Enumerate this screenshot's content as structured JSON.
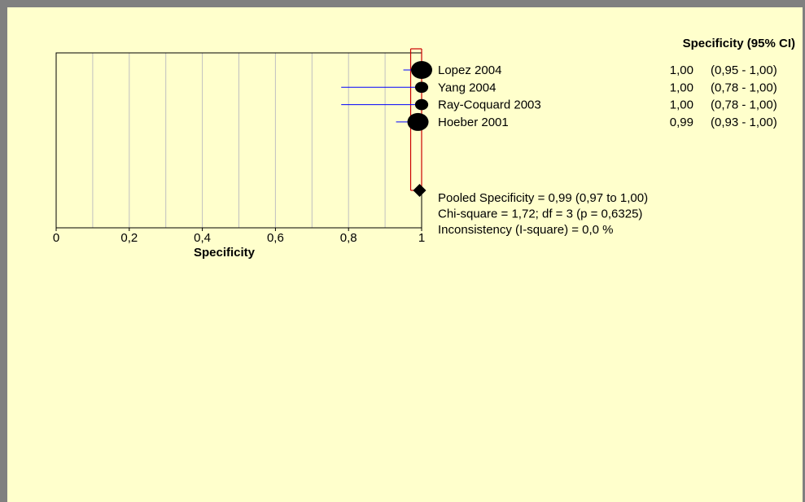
{
  "chart_data": {
    "type": "forest",
    "xlabel": "Specificity",
    "xlim": [
      0,
      1
    ],
    "xticks": [
      0,
      0.2,
      0.4,
      0.6,
      0.8,
      1
    ],
    "xtick_labels": [
      "0",
      "0,2",
      "0,4",
      "0,6",
      "0,8",
      "1"
    ],
    "grid": true,
    "header": "Specificity (95% CI)",
    "studies": [
      {
        "name": "Lopez 2004",
        "estimate": 1.0,
        "lower": 0.95,
        "upper": 1.0,
        "estimate_label": "1,00",
        "ci_label": "(0,95 - 1,00)",
        "weight": 1.0
      },
      {
        "name": "Yang 2004",
        "estimate": 1.0,
        "lower": 0.78,
        "upper": 1.0,
        "estimate_label": "1,00",
        "ci_label": "(0,78 - 1,00)",
        "weight": 0.3
      },
      {
        "name": "Ray-Coquard 2003",
        "estimate": 1.0,
        "lower": 0.78,
        "upper": 1.0,
        "estimate_label": "1,00",
        "ci_label": "(0,78 - 1,00)",
        "weight": 0.3
      },
      {
        "name": "Hoeber 2001",
        "estimate": 0.99,
        "lower": 0.93,
        "upper": 1.0,
        "estimate_label": "0,99",
        "ci_label": "(0,93 - 1,00)",
        "weight": 1.0
      }
    ],
    "pooled": {
      "estimate": 0.99,
      "lower": 0.97,
      "upper": 1.0
    },
    "stats": [
      "Pooled Specificity = 0,99 (0,97 to 1,00)",
      "Chi-square = 1,72; df =  3 (p = 0,6325)",
      "Inconsistency (I-square) = 0,0 %"
    ],
    "colors": {
      "ci_line": "#0000ff",
      "pooled_band": "#cc0000",
      "marker": "#000000",
      "grid": "#c0c0c0",
      "background": "#ffffcc"
    }
  }
}
